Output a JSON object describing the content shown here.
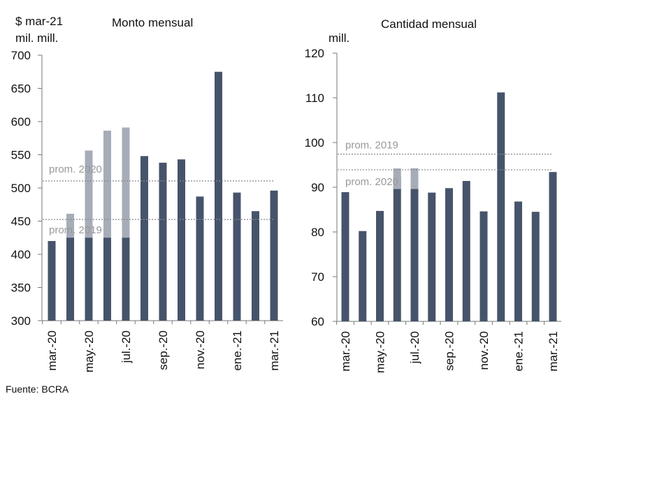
{
  "source": "Fuente: BCRA",
  "colors": {
    "bar": "#46546b",
    "ghost": "#a6adb8",
    "axis": "#777777",
    "ref_line": "#888888",
    "ref_text": "#999999"
  },
  "chart_data": [
    {
      "type": "bar",
      "title": "Monto mensual",
      "unit_label": "$ mar-21",
      "unit_label_2": "mil. mill.",
      "categories": [
        "mar.-20",
        "abr.-20",
        "may.-20",
        "jun.-20",
        "jul.-20",
        "ago.-20",
        "sep.-20",
        "oct.-20",
        "nov.-20",
        "dic.-20",
        "ene.-21",
        "feb.-21",
        "mar.-21"
      ],
      "tick_labels": [
        "mar.-20",
        "may.-20",
        "jul.-20",
        "sep.-20",
        "nov.-20",
        "ene.-21",
        "mar.-21"
      ],
      "tick_indices": [
        0,
        2,
        4,
        6,
        8,
        10,
        12
      ],
      "values": [
        420,
        461,
        556,
        586,
        591,
        548,
        538,
        543,
        487,
        675,
        493,
        465,
        496
      ],
      "ylim": [
        300,
        700
      ],
      "yticks": [
        300,
        350,
        400,
        450,
        500,
        550,
        600,
        650,
        700
      ],
      "reference_lines": [
        {
          "label": "prom. 2020",
          "value": 510.5
        },
        {
          "label": "prom. 2019",
          "value": 452.5
        }
      ],
      "ghost_bands": [
        {
          "from": 425,
          "to": 453,
          "indices": [
            1,
            2,
            3,
            4
          ]
        },
        {
          "from": 515,
          "to": 543,
          "indices": [
            2,
            3,
            4
          ]
        }
      ]
    },
    {
      "type": "bar",
      "title": "Cantidad mensual",
      "unit_label": "mill.",
      "categories": [
        "mar.-20",
        "abr.-20",
        "may.-20",
        "jun.-20",
        "jul.-20",
        "ago.-20",
        "sep.-20",
        "oct.-20",
        "nov.-20",
        "dic.-20",
        "ene.-21",
        "feb.-21",
        "mar.-21"
      ],
      "tick_labels": [
        "mar.-20",
        "may.-20",
        "jul.-20",
        "sep.-20",
        "nov.-20",
        "ene.-21",
        "mar.-21"
      ],
      "tick_indices": [
        0,
        2,
        4,
        6,
        8,
        10,
        12
      ],
      "values": [
        88.9,
        80.2,
        84.7,
        92.3,
        94.2,
        88.8,
        89.8,
        91.4,
        84.6,
        111.2,
        86.8,
        84.5,
        93.4
      ],
      "ylim": [
        60,
        120
      ],
      "yticks": [
        60,
        70,
        80,
        90,
        100,
        110,
        120
      ],
      "reference_lines": [
        {
          "label": "prom. 2019",
          "value": 97.4
        },
        {
          "label": "prom. 2020",
          "value": 93.9
        }
      ],
      "ghost_bands": [
        {
          "from": 89.6,
          "to": 94.2,
          "indices": [
            3,
            4
          ]
        }
      ]
    }
  ]
}
